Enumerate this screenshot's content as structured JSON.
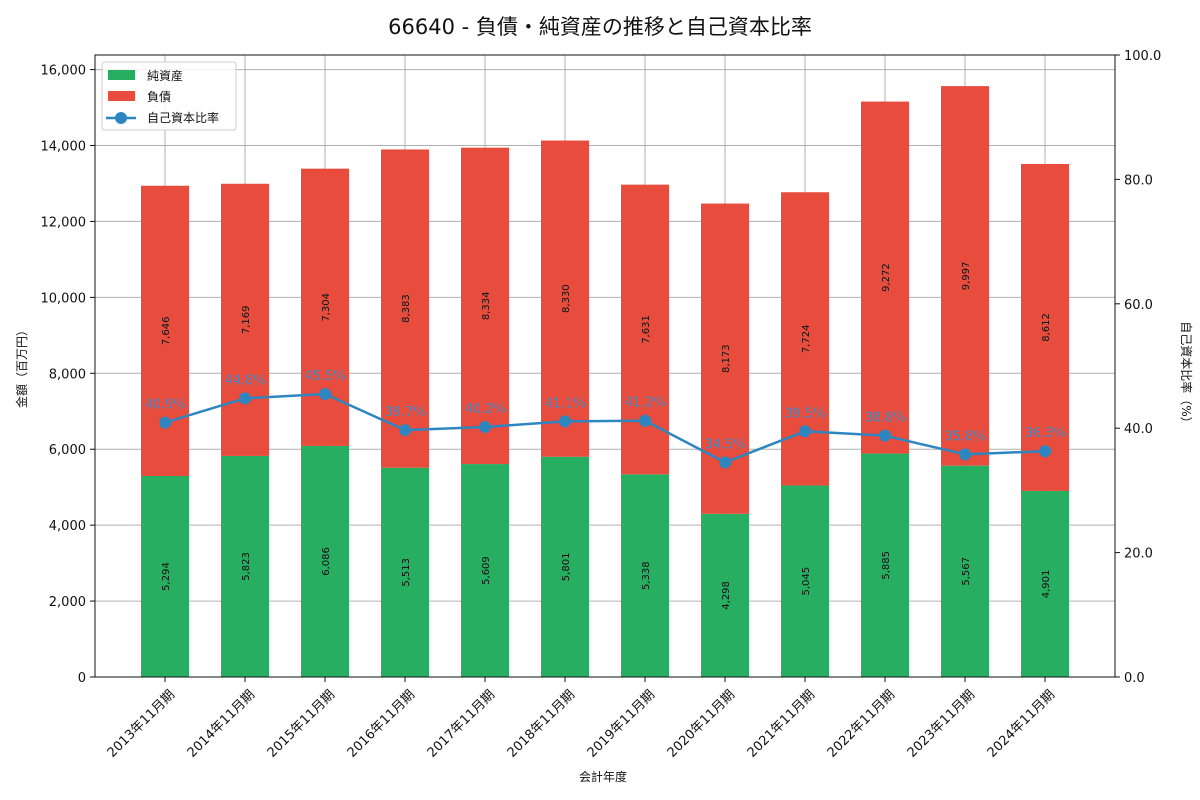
{
  "chart_data": {
    "type": "bar",
    "stacked": true,
    "title": "66640 - 負債・純資産の推移と自己資本比率",
    "xlabel": "会計年度",
    "ylabel": "金額（百万円）",
    "y2label": "自己資本比率（%）",
    "categories": [
      "2013年11月期",
      "2014年11月期",
      "2015年11月期",
      "2016年11月期",
      "2017年11月期",
      "2018年11月期",
      "2019年11月期",
      "2020年11月期",
      "2021年11月期",
      "2022年11月期",
      "2023年11月期",
      "2024年11月期"
    ],
    "series": [
      {
        "name": "純資産",
        "type": "bar",
        "color": "#27ae60",
        "values": [
          5294,
          5823,
          6086,
          5513,
          5609,
          5801,
          5338,
          4298,
          5045,
          5885,
          5567,
          4901
        ],
        "labels": [
          "5,294",
          "5,823",
          "6,086",
          "5,513",
          "5,609",
          "5,801",
          "5,338",
          "4,298",
          "5,045",
          "5,885",
          "5,567",
          "4,901"
        ]
      },
      {
        "name": "負債",
        "type": "bar",
        "color": "#e74c3c",
        "values": [
          7646,
          7169,
          7304,
          8383,
          8334,
          8330,
          7631,
          8173,
          7724,
          9272,
          9997,
          8612
        ],
        "labels": [
          "7,646",
          "7,169",
          "7,304",
          "8,383",
          "8,334",
          "8,330",
          "7,631",
          "8,173",
          "7,724",
          "9,272",
          "9,997",
          "8,612"
        ]
      },
      {
        "name": "自己資本比率",
        "type": "line",
        "axis": "right",
        "color": "#2e86c1",
        "values": [
          40.9,
          44.8,
          45.5,
          39.7,
          40.2,
          41.1,
          41.2,
          34.5,
          39.5,
          38.8,
          35.8,
          36.3
        ],
        "labels": [
          "40.9%",
          "44.8%",
          "45.5%",
          "39.7%",
          "40.2%",
          "41.1%",
          "41.2%",
          "34.5%",
          "39.5%",
          "38.8%",
          "35.8%",
          "36.3%"
        ]
      }
    ],
    "ylim": [
      0,
      16384
    ],
    "y2lim": [
      0,
      100
    ],
    "yticks": [
      "0",
      "2,000",
      "4,000",
      "6,000",
      "8,000",
      "10,000",
      "12,000",
      "14,000",
      "16,000"
    ],
    "y2ticks": [
      "0.0",
      "20.0",
      "40.0",
      "60.0",
      "80.0",
      "100.0"
    ],
    "grid": true,
    "legend_position": "upper left"
  }
}
